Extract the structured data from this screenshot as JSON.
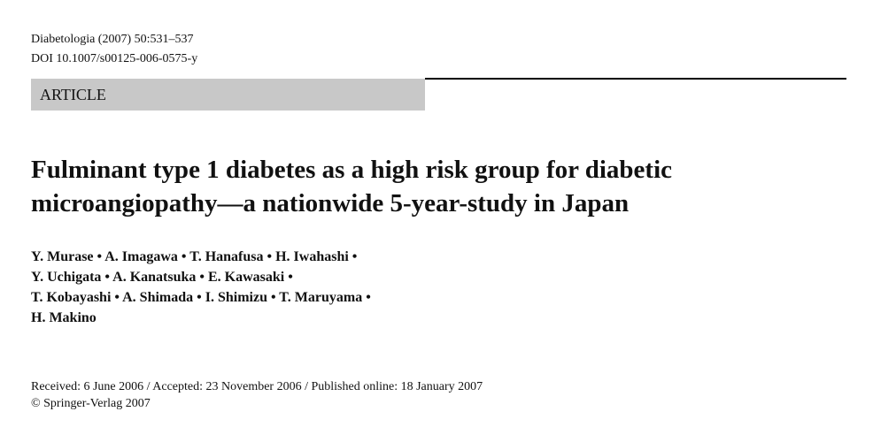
{
  "header": {
    "journal": "Diabetologia (2007) 50:531–537",
    "doi": "DOI 10.1007/s00125-006-0575-y",
    "section": "ARTICLE"
  },
  "title_lines": [
    "Fulminant type 1 diabetes as a high risk group for diabetic",
    "microangiopathy—a nationwide 5-year-study in Japan"
  ],
  "author_lines": [
    "Y. Murase • A. Imagawa • T. Hanafusa • H. Iwahashi •",
    "Y. Uchigata • A. Kanatsuka • E. Kawasaki •",
    "T. Kobayashi • A. Shimada • I. Shimizu • T. Maruyama •",
    "H. Makino"
  ],
  "footer": {
    "dates": "Received: 6 June 2006 / Accepted: 23 November 2006 / Published online: 18 January 2007",
    "copyright": "© Springer-Verlag 2007"
  }
}
